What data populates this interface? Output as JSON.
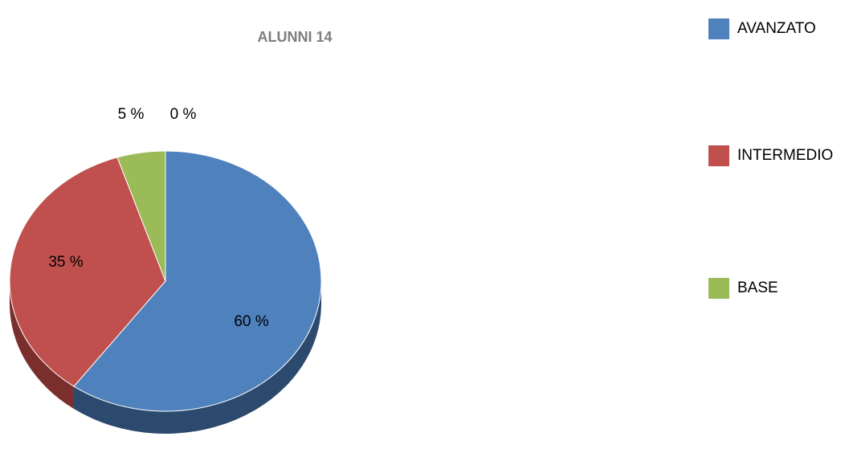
{
  "chart_data": {
    "type": "pie",
    "title": "ALUNNI 14",
    "style": "3d",
    "legend_position": "right",
    "categories": [
      "AVANZATO",
      "INTERMEDIO",
      "BASE",
      ""
    ],
    "values": [
      60,
      35,
      5,
      0
    ],
    "data_labels": [
      "60 %",
      "35 %",
      "5 %",
      "0 %"
    ],
    "colors": [
      "#4f81bd",
      "#c0504d",
      "#9bbb59",
      "#8064a2"
    ],
    "side_colors": [
      "#2b4a6e",
      "#7a2f2d",
      "#5f7a34",
      "#4f3a66"
    ]
  }
}
